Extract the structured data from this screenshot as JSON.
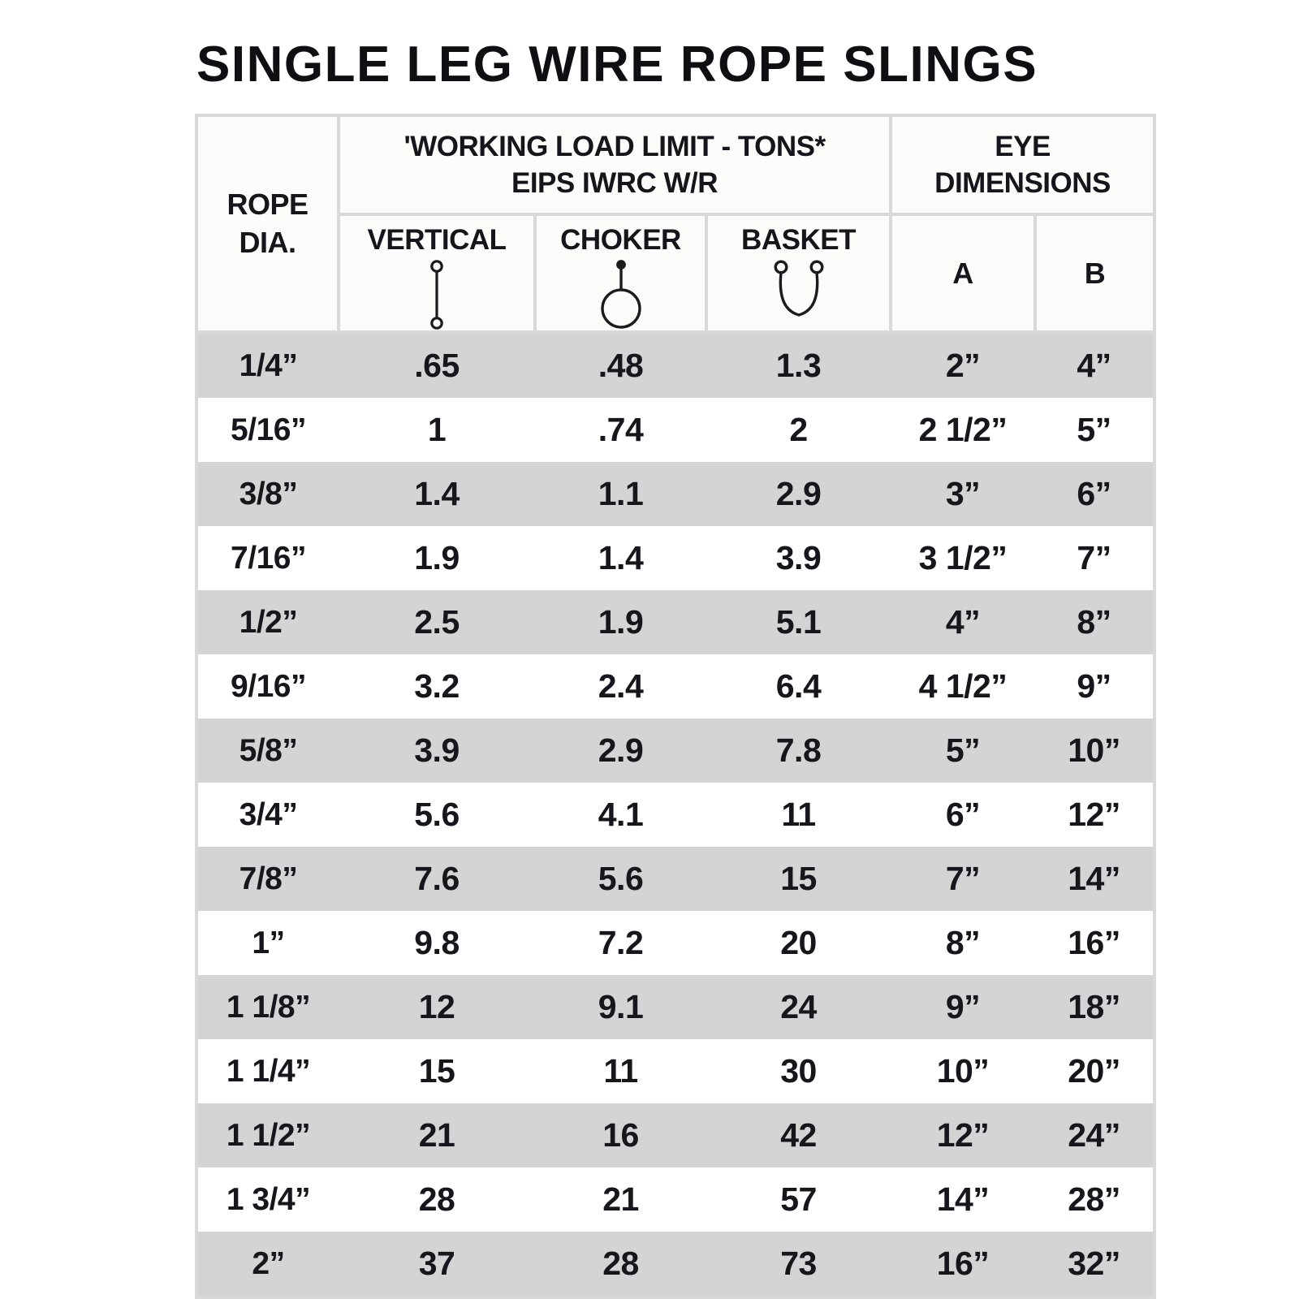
{
  "title": "SINGLE LEG WIRE ROPE SLINGS",
  "colors": {
    "band_gray": "#d4d4d4",
    "band_white": "#ffffff",
    "border_gray": "#d9d9d9",
    "header_bg": "#fcfcfa",
    "text": "#15151b"
  },
  "table": {
    "column_keys": [
      "rope-dia",
      "vertical",
      "choker",
      "basket",
      "eye-a",
      "eye-b"
    ],
    "header": {
      "rope_line1": "ROPE",
      "rope_line2": "DIA.",
      "wll_line1": "'WORKING LOAD LIMIT - TONS*",
      "wll_line2": "EIPS IWRC W/R",
      "eye_line1": "EYE",
      "eye_line2": "DIMENSIONS",
      "vertical": "VERTICAL",
      "choker": "CHOKER",
      "basket": "BASKET",
      "a": "A",
      "b": "B"
    },
    "icons": [
      "vertical-sling-icon",
      "choker-sling-icon",
      "basket-sling-icon"
    ],
    "rows": [
      [
        "1/4”",
        ".65",
        ".48",
        "1.3",
        "2”",
        "4”"
      ],
      [
        "5/16”",
        "1",
        ".74",
        "2",
        "2 1/2”",
        "5”"
      ],
      [
        "3/8”",
        "1.4",
        "1.1",
        "2.9",
        "3”",
        "6”"
      ],
      [
        "7/16”",
        "1.9",
        "1.4",
        "3.9",
        "3 1/2”",
        "7”"
      ],
      [
        "1/2”",
        "2.5",
        "1.9",
        "5.1",
        "4”",
        "8”"
      ],
      [
        "9/16”",
        "3.2",
        "2.4",
        "6.4",
        "4 1/2”",
        "9”"
      ],
      [
        "5/8”",
        "3.9",
        "2.9",
        "7.8",
        "5”",
        "10”"
      ],
      [
        "3/4”",
        "5.6",
        "4.1",
        "11",
        "6”",
        "12”"
      ],
      [
        "7/8”",
        "7.6",
        "5.6",
        "15",
        "7”",
        "14”"
      ],
      [
        "1”",
        "9.8",
        "7.2",
        "20",
        "8”",
        "16”"
      ],
      [
        "1 1/8”",
        "12",
        "9.1",
        "24",
        "9”",
        "18”"
      ],
      [
        "1 1/4”",
        "15",
        "11",
        "30",
        "10”",
        "20”"
      ],
      [
        "1 1/2”",
        "21",
        "16",
        "42",
        "12”",
        "24”"
      ],
      [
        "1 3/4”",
        "28",
        "21",
        "57",
        "14”",
        "28”"
      ],
      [
        "2”",
        "37",
        "28",
        "73",
        "16”",
        "32”"
      ]
    ]
  }
}
